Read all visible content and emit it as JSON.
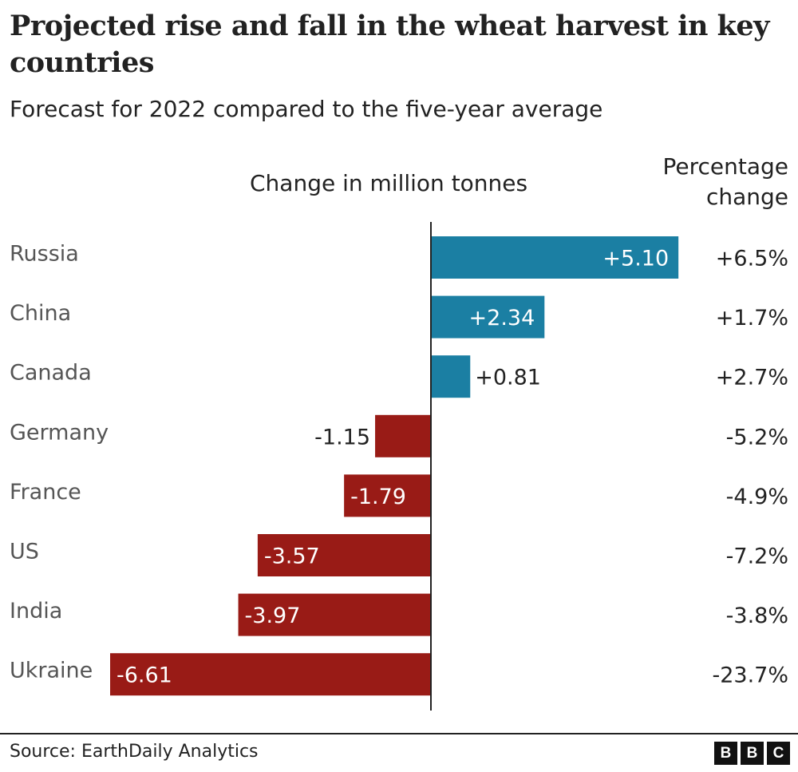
{
  "chart_data": {
    "type": "bar",
    "orientation": "horizontal",
    "title": "Projected rise and fall in the wheat harvest in key countries",
    "subtitle": "Forecast for 2022 compared to the five-year average",
    "xlabel": "Change in million tonnes",
    "secondary_column_label": "Percentage change",
    "categories": [
      "Russia",
      "China",
      "Canada",
      "Germany",
      "France",
      "US",
      "India",
      "Ukraine"
    ],
    "values": [
      5.1,
      2.34,
      0.81,
      -1.15,
      -1.79,
      -3.57,
      -3.97,
      -6.61
    ],
    "value_labels": [
      "+5.10",
      "+2.34",
      "+0.81",
      "-1.15",
      "-1.79",
      "-3.57",
      "-3.97",
      "-6.61"
    ],
    "percentage_change": [
      "+6.5%",
      "+1.7%",
      "+2.7%",
      "-5.2%",
      "-4.9%",
      "-7.2%",
      "-3.8%",
      "-23.7%"
    ],
    "colors": {
      "positive": "#1b7fa3",
      "negative": "#991b16"
    },
    "xlim": [
      -6.61,
      5.1
    ],
    "grid": false,
    "legend": "none"
  },
  "header": {
    "title": "Projected rise and fall in the wheat harvest in key countries",
    "subtitle": "Forecast for 2022 compared to the five-year average",
    "change_heading": "Change in million tonnes",
    "pct_heading_line1": "Percentage",
    "pct_heading_line2": "change"
  },
  "footer": {
    "source": "Source: EarthDaily Analytics",
    "logo": [
      "B",
      "B",
      "C"
    ]
  }
}
